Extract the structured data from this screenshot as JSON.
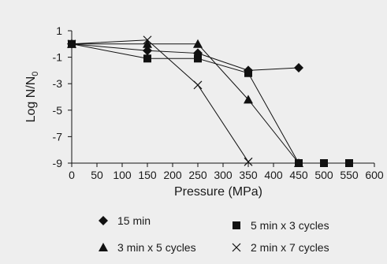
{
  "chart_data": {
    "type": "line",
    "xlabel": "Pressure (MPa)",
    "ylabel_main": "Log N/N",
    "ylabel_sub": "0",
    "xlim": [
      0,
      600
    ],
    "ylim": [
      -9,
      1
    ],
    "xticks": [
      0,
      50,
      100,
      150,
      200,
      250,
      300,
      350,
      400,
      450,
      500,
      550,
      600
    ],
    "yticks": [
      1,
      -1,
      -3,
      -5,
      -7,
      -9
    ],
    "grid": false,
    "legend_placement": "bottom",
    "series": [
      {
        "name": "15 min",
        "marker": "diamond",
        "color": "#111111",
        "points": [
          [
            0,
            0
          ],
          [
            150,
            -0.5
          ],
          [
            250,
            -0.7
          ],
          [
            350,
            -2.0
          ],
          [
            450,
            -1.8
          ]
        ]
      },
      {
        "name": "5 min x 3 cycles",
        "marker": "square",
        "color": "#111111",
        "points": [
          [
            0,
            0
          ],
          [
            150,
            -1.1
          ],
          [
            250,
            -1.1
          ],
          [
            350,
            -2.2
          ],
          [
            450,
            -9
          ],
          [
            500,
            -9
          ],
          [
            550,
            -9
          ]
        ]
      },
      {
        "name": "3 min x 5 cycles",
        "marker": "triangle",
        "color": "#111111",
        "points": [
          [
            0,
            0
          ],
          [
            150,
            0
          ],
          [
            250,
            0
          ],
          [
            350,
            -4.2
          ],
          [
            450,
            -9
          ]
        ]
      },
      {
        "name": "2 min x 7 cycles",
        "marker": "x",
        "color": "#111111",
        "points": [
          [
            0,
            0
          ],
          [
            150,
            0.3
          ],
          [
            250,
            -3.1
          ],
          [
            350,
            -8.9
          ]
        ]
      }
    ]
  }
}
